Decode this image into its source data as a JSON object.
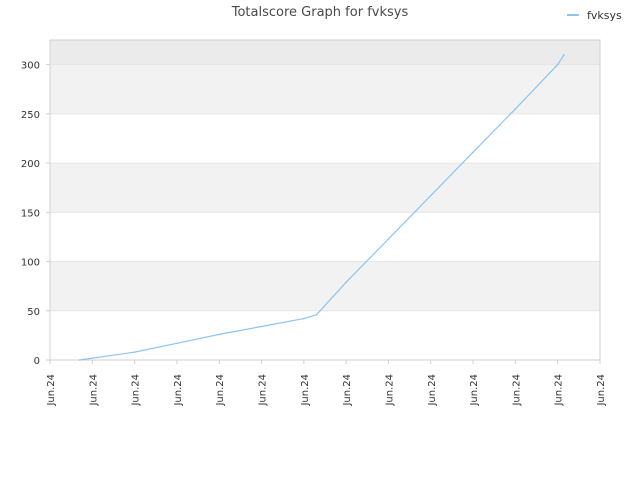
{
  "chart_data": {
    "type": "line",
    "title": "Totalscore Graph for fvksys",
    "xlabel": "",
    "ylabel": "",
    "x_tick_labels": [
      "Jun.24",
      "Jun.24",
      "Jun.24",
      "Jun.24",
      "Jun.24",
      "Jun.24",
      "Jun.24",
      "Jun.24",
      "Jun.24",
      "Jun.24",
      "Jun.24",
      "Jun.24",
      "Jun.24",
      "Jun.24"
    ],
    "y_ticks": [
      0,
      50,
      100,
      150,
      200,
      250,
      300
    ],
    "ylim": [
      0,
      325
    ],
    "xlim": [
      0,
      13
    ],
    "grid": true,
    "legend_position": "top-right",
    "series": [
      {
        "name": "fvksys",
        "color": "#8ec4f2",
        "x": [
          0.7,
          2.0,
          3.0,
          4.0,
          5.0,
          6.0,
          6.3,
          7.0,
          8.0,
          9.0,
          10.0,
          11.0,
          12.0,
          12.15
        ],
        "values": [
          0,
          8,
          17,
          26,
          34,
          42,
          46,
          79,
          123,
          167,
          211,
          255,
          300,
          310
        ]
      }
    ]
  },
  "colors": {
    "band": "#f2f2f2",
    "top_band": "#ebebeb",
    "grid": "#e6e6e6",
    "axis": "#d0d0d0"
  }
}
